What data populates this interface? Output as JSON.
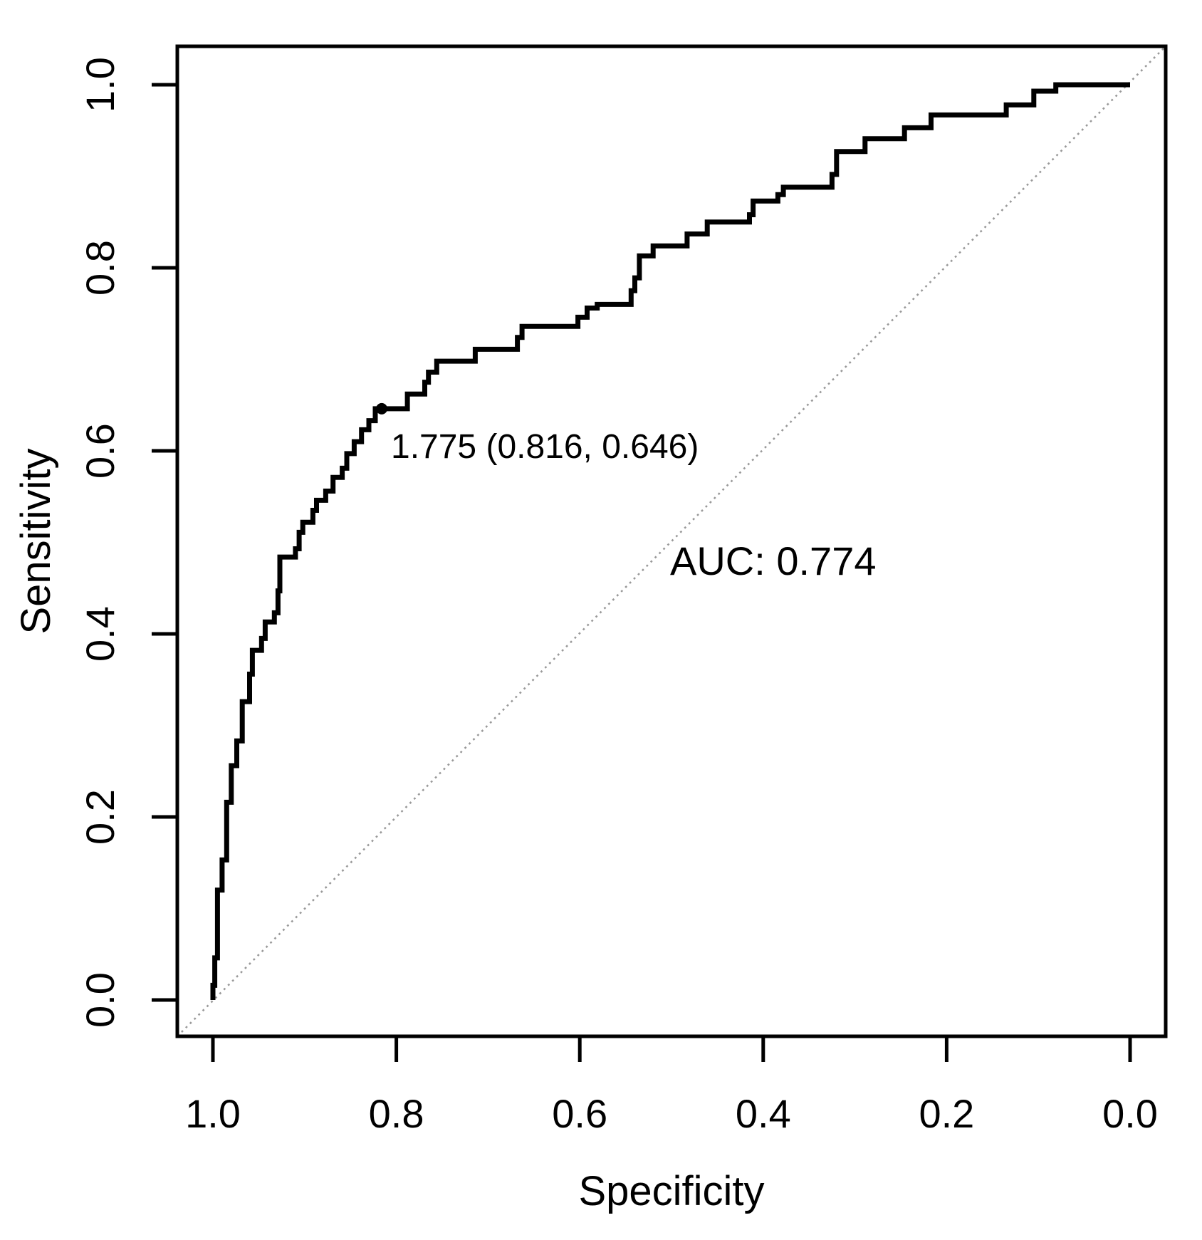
{
  "page": {
    "background": "#ffffff"
  },
  "chart_data": {
    "type": "line",
    "subtype": "roc-curve",
    "title": "",
    "xlabel": "Specificity",
    "ylabel": "Sensitivity",
    "x_axis": {
      "reversed": true,
      "range": [
        1.0,
        0.0
      ],
      "ticks": [
        {
          "label": "1.0",
          "value": 1.0
        },
        {
          "label": "0.8",
          "value": 0.8
        },
        {
          "label": "0.6",
          "value": 0.6
        },
        {
          "label": "0.4",
          "value": 0.4
        },
        {
          "label": "0.2",
          "value": 0.2
        },
        {
          "label": "0.0",
          "value": 0.0
        }
      ]
    },
    "y_axis": {
      "range": [
        0.0,
        1.0
      ],
      "ticks": [
        {
          "label": "0.0",
          "value": 0.0
        },
        {
          "label": "0.2",
          "value": 0.2
        },
        {
          "label": "0.4",
          "value": 0.4
        },
        {
          "label": "0.6",
          "value": 0.6
        },
        {
          "label": "0.8",
          "value": 0.8
        },
        {
          "label": "1.0",
          "value": 1.0
        }
      ]
    },
    "grid": false,
    "legend": false,
    "diagonal_reference_line": true,
    "series": [
      {
        "name": "ROC curve",
        "points_format": [
          "specificity",
          "sensitivity"
        ],
        "points": [
          [
            1.0,
            0.0
          ],
          [
            1.0,
            0.016
          ],
          [
            0.998,
            0.016
          ],
          [
            0.998,
            0.046
          ],
          [
            0.995,
            0.046
          ],
          [
            0.995,
            0.12
          ],
          [
            0.99,
            0.12
          ],
          [
            0.99,
            0.153
          ],
          [
            0.985,
            0.153
          ],
          [
            0.985,
            0.216
          ],
          [
            0.98,
            0.216
          ],
          [
            0.98,
            0.256
          ],
          [
            0.974,
            0.256
          ],
          [
            0.974,
            0.283
          ],
          [
            0.968,
            0.283
          ],
          [
            0.968,
            0.326
          ],
          [
            0.96,
            0.326
          ],
          [
            0.96,
            0.356
          ],
          [
            0.957,
            0.356
          ],
          [
            0.957,
            0.382
          ],
          [
            0.947,
            0.382
          ],
          [
            0.947,
            0.395
          ],
          [
            0.943,
            0.395
          ],
          [
            0.943,
            0.413
          ],
          [
            0.933,
            0.413
          ],
          [
            0.933,
            0.423
          ],
          [
            0.929,
            0.423
          ],
          [
            0.929,
            0.447
          ],
          [
            0.927,
            0.447
          ],
          [
            0.927,
            0.484
          ],
          [
            0.91,
            0.484
          ],
          [
            0.91,
            0.493
          ],
          [
            0.906,
            0.493
          ],
          [
            0.906,
            0.511
          ],
          [
            0.902,
            0.511
          ],
          [
            0.902,
            0.522
          ],
          [
            0.891,
            0.522
          ],
          [
            0.891,
            0.535
          ],
          [
            0.887,
            0.535
          ],
          [
            0.887,
            0.546
          ],
          [
            0.877,
            0.546
          ],
          [
            0.877,
            0.556
          ],
          [
            0.869,
            0.556
          ],
          [
            0.869,
            0.571
          ],
          [
            0.859,
            0.571
          ],
          [
            0.859,
            0.581
          ],
          [
            0.854,
            0.581
          ],
          [
            0.854,
            0.597
          ],
          [
            0.846,
            0.597
          ],
          [
            0.846,
            0.61
          ],
          [
            0.838,
            0.61
          ],
          [
            0.838,
            0.623
          ],
          [
            0.83,
            0.623
          ],
          [
            0.83,
            0.633
          ],
          [
            0.823,
            0.633
          ],
          [
            0.823,
            0.646
          ],
          [
            0.788,
            0.646
          ],
          [
            0.788,
            0.662
          ],
          [
            0.769,
            0.662
          ],
          [
            0.769,
            0.675
          ],
          [
            0.765,
            0.675
          ],
          [
            0.765,
            0.686
          ],
          [
            0.756,
            0.686
          ],
          [
            0.756,
            0.698
          ],
          [
            0.714,
            0.698
          ],
          [
            0.714,
            0.711
          ],
          [
            0.668,
            0.711
          ],
          [
            0.668,
            0.724
          ],
          [
            0.663,
            0.724
          ],
          [
            0.663,
            0.736
          ],
          [
            0.602,
            0.736
          ],
          [
            0.602,
            0.746
          ],
          [
            0.592,
            0.746
          ],
          [
            0.592,
            0.756
          ],
          [
            0.581,
            0.756
          ],
          [
            0.581,
            0.76
          ],
          [
            0.544,
            0.76
          ],
          [
            0.544,
            0.775
          ],
          [
            0.54,
            0.775
          ],
          [
            0.54,
            0.789
          ],
          [
            0.535,
            0.789
          ],
          [
            0.535,
            0.813
          ],
          [
            0.52,
            0.813
          ],
          [
            0.52,
            0.824
          ],
          [
            0.483,
            0.824
          ],
          [
            0.483,
            0.837
          ],
          [
            0.461,
            0.837
          ],
          [
            0.461,
            0.85
          ],
          [
            0.415,
            0.85
          ],
          [
            0.415,
            0.858
          ],
          [
            0.411,
            0.858
          ],
          [
            0.411,
            0.873
          ],
          [
            0.384,
            0.873
          ],
          [
            0.384,
            0.88
          ],
          [
            0.378,
            0.88
          ],
          [
            0.378,
            0.888
          ],
          [
            0.325,
            0.888
          ],
          [
            0.325,
            0.902
          ],
          [
            0.32,
            0.902
          ],
          [
            0.32,
            0.927
          ],
          [
            0.289,
            0.927
          ],
          [
            0.289,
            0.941
          ],
          [
            0.246,
            0.941
          ],
          [
            0.246,
            0.953
          ],
          [
            0.217,
            0.953
          ],
          [
            0.217,
            0.967
          ],
          [
            0.135,
            0.967
          ],
          [
            0.135,
            0.978
          ],
          [
            0.105,
            0.978
          ],
          [
            0.105,
            0.993
          ],
          [
            0.081,
            0.993
          ],
          [
            0.081,
            1.0
          ],
          [
            0.0,
            1.0
          ]
        ]
      }
    ],
    "threshold_point": {
      "label": "1.775 (0.816, 0.646)",
      "threshold": 1.775,
      "specificity": 0.816,
      "sensitivity": 0.646
    },
    "auc": {
      "label": "AUC: 0.774",
      "value": 0.774
    },
    "colors": {
      "curve": "#000000",
      "diagonal": "#999999",
      "axis": "#000000",
      "text": "#000000",
      "background": "#ffffff"
    }
  }
}
